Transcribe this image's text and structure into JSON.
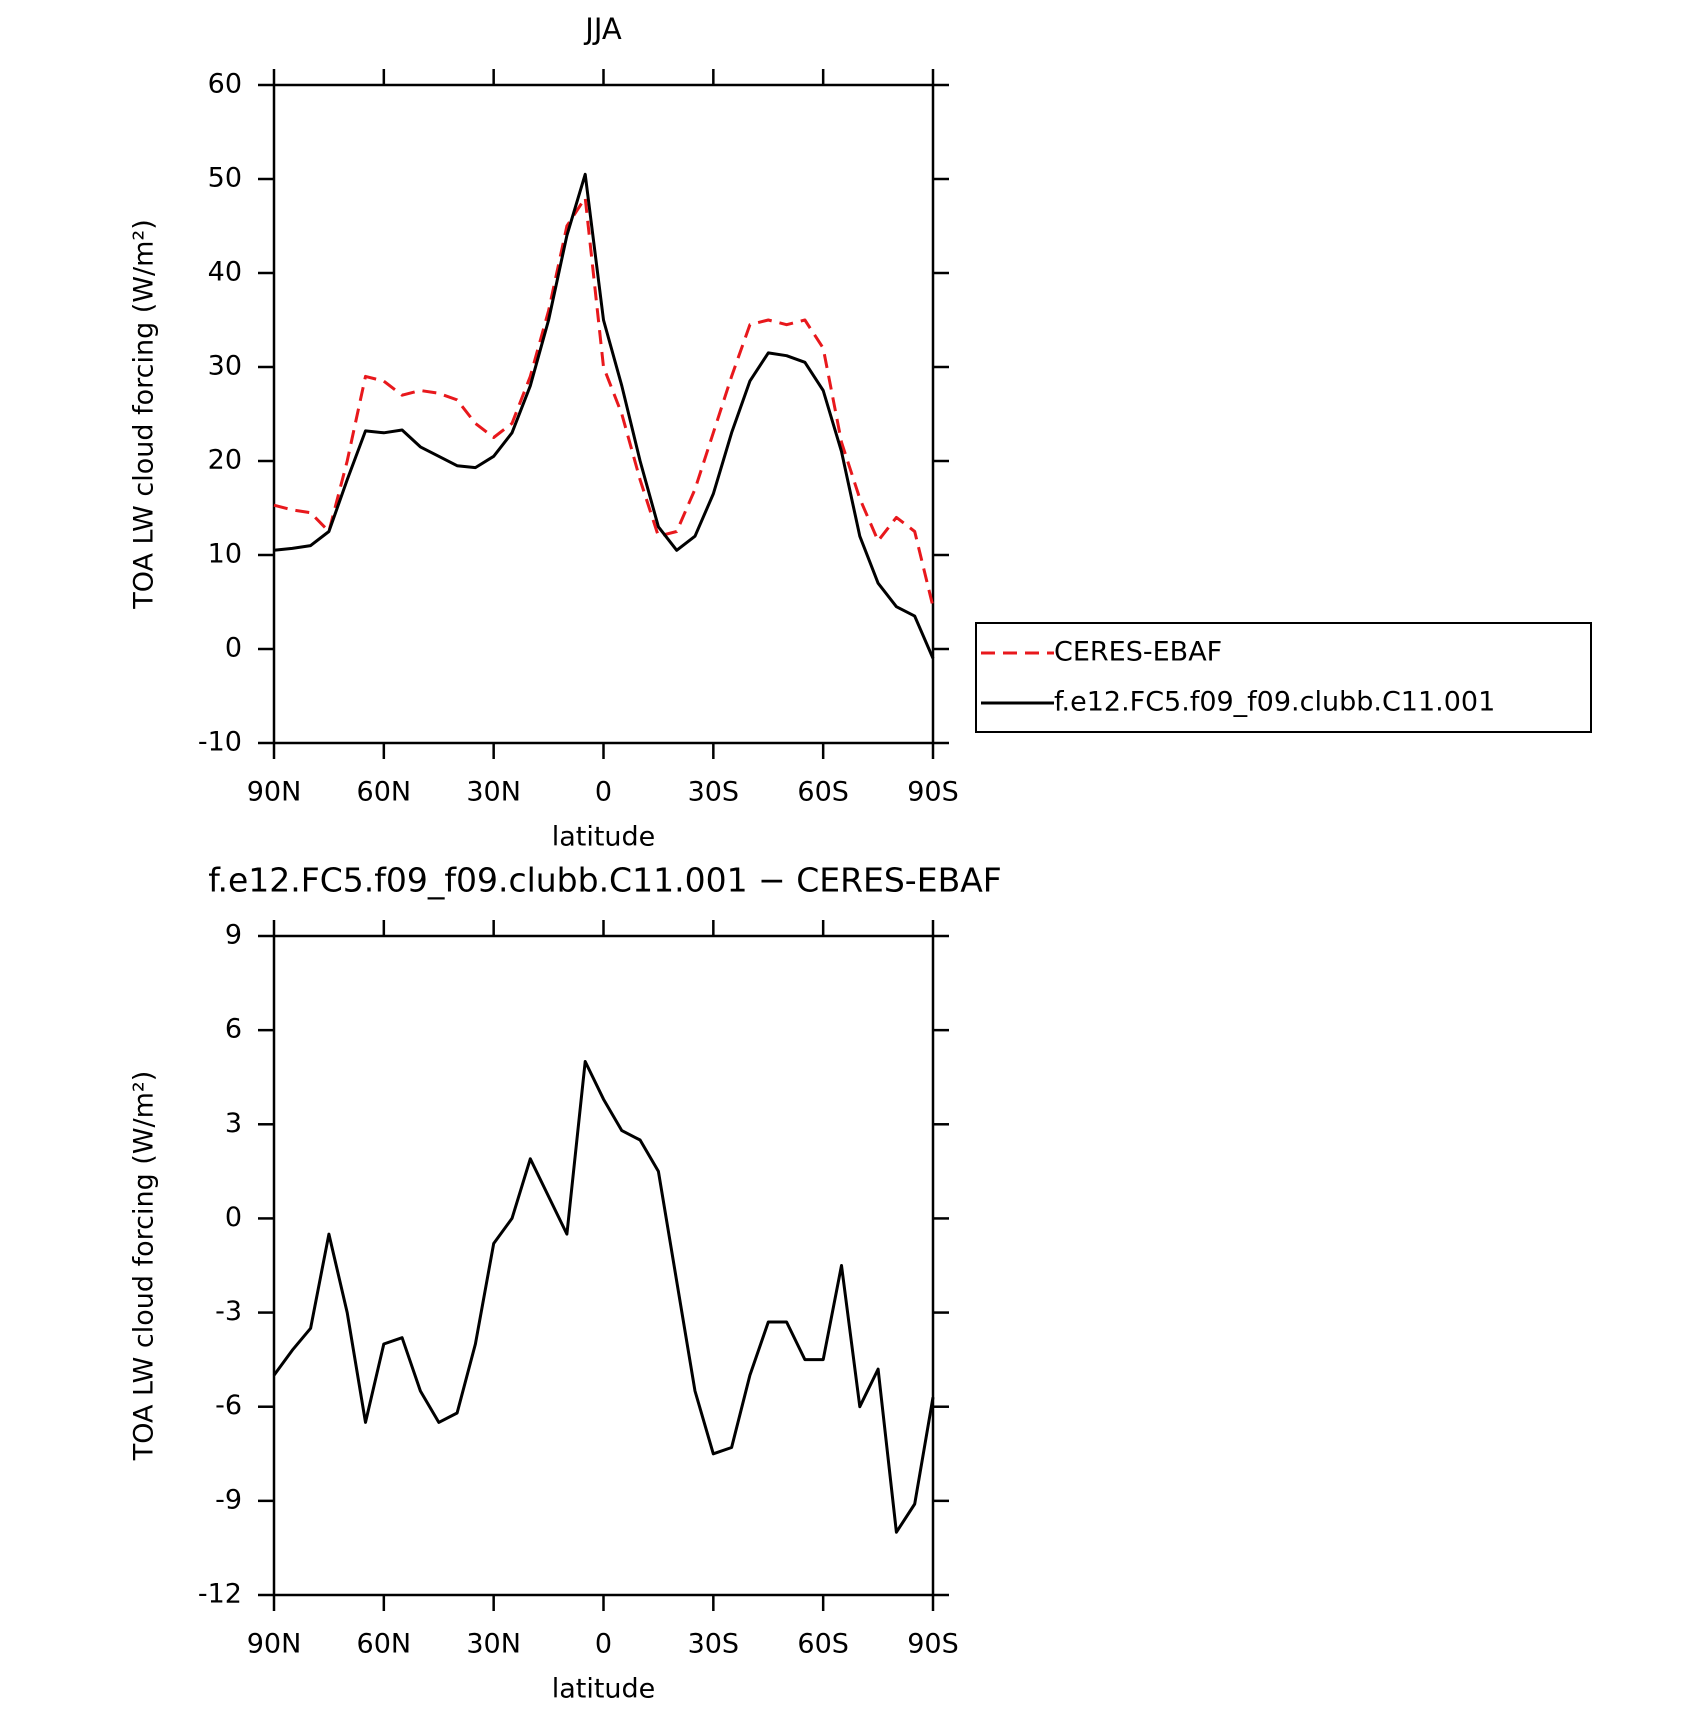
{
  "chart_data": [
    {
      "type": "line",
      "title": "JJA",
      "xlabel": "latitude",
      "ylabel": "TOA LW cloud forcing (W/m²)",
      "x": [
        90,
        85,
        80,
        75,
        70,
        65,
        60,
        55,
        50,
        45,
        40,
        35,
        30,
        25,
        20,
        15,
        10,
        5,
        0,
        -5,
        -10,
        -15,
        -20,
        -25,
        -30,
        -35,
        -40,
        -45,
        -50,
        -55,
        -60,
        -65,
        -70,
        -75,
        -80,
        -85,
        -90
      ],
      "xlim": [
        90,
        -90
      ],
      "xticks": [
        {
          "value": 90,
          "label": "90N"
        },
        {
          "value": 60,
          "label": "60N"
        },
        {
          "value": 30,
          "label": "30N"
        },
        0,
        {
          "value": -30,
          "label": "30S"
        },
        {
          "value": -60,
          "label": "60S"
        },
        {
          "value": -90,
          "label": "90S"
        }
      ],
      "ylim": [
        -10,
        60
      ],
      "yticks": [
        -10,
        0,
        10,
        20,
        30,
        40,
        50,
        60
      ],
      "legend": "right",
      "series": [
        {
          "name": "CERES-EBAF",
          "color": "#e8181c",
          "dash": true,
          "values": [
            15.3,
            14.8,
            14.5,
            12.5,
            20,
            29,
            28.5,
            27,
            27.5,
            27.2,
            26.5,
            24,
            22.5,
            24,
            29,
            36,
            45,
            48,
            30,
            25,
            18,
            12,
            12.5,
            17,
            23,
            29,
            34.5,
            35,
            34.5,
            35,
            32,
            22,
            16,
            11.5,
            14,
            12.5,
            4.5
          ]
        },
        {
          "name": "f.e12.FC5.f09_f09.clubb.C11.001",
          "color": "#000000",
          "dash": false,
          "values": [
            10.5,
            10.7,
            11,
            12.5,
            18,
            23.2,
            23,
            23.3,
            21.5,
            20.5,
            19.5,
            19.3,
            20.5,
            23,
            28,
            35,
            44,
            50.5,
            35,
            28,
            20,
            13,
            10.5,
            12,
            16.5,
            23,
            28.5,
            31.5,
            31.2,
            30.5,
            27.5,
            21,
            12,
            7,
            4.5,
            3.5,
            -1
          ]
        }
      ]
    },
    {
      "type": "line",
      "title": "f.e12.FC5.f09_f09.clubb.C11.001 − CERES-EBAF",
      "xlabel": "latitude",
      "ylabel": "TOA LW cloud forcing (W/m²)",
      "x": [
        90,
        85,
        80,
        75,
        70,
        65,
        60,
        55,
        50,
        45,
        40,
        35,
        30,
        25,
        20,
        15,
        10,
        5,
        0,
        -5,
        -10,
        -15,
        -20,
        -25,
        -30,
        -35,
        -40,
        -45,
        -50,
        -55,
        -60,
        -65,
        -70,
        -75,
        -80,
        -85,
        -90
      ],
      "xlim": [
        90,
        -90
      ],
      "xticks": [
        {
          "value": 90,
          "label": "90N"
        },
        {
          "value": 60,
          "label": "60N"
        },
        {
          "value": 30,
          "label": "30N"
        },
        0,
        {
          "value": -30,
          "label": "30S"
        },
        {
          "value": -60,
          "label": "60S"
        },
        {
          "value": -90,
          "label": "90S"
        }
      ],
      "ylim": [
        -12,
        9
      ],
      "yticks": [
        -12,
        -9,
        -6,
        -3,
        0,
        3,
        6,
        9
      ],
      "series": [
        {
          "color": "#000000",
          "dash": false,
          "values": [
            -5,
            -4.2,
            -3.5,
            -0.5,
            -3,
            -6.5,
            -4,
            -3.8,
            -5.5,
            -6.5,
            -6.2,
            -4,
            -0.8,
            0,
            1.9,
            0.7,
            -0.5,
            5,
            3.8,
            2.8,
            2.5,
            1.5,
            -2,
            -5.5,
            -7.5,
            -7.3,
            -5,
            -3.3,
            -3.3,
            -4.5,
            -4.5,
            -1.5,
            -6,
            -4.8,
            -10,
            -9.1,
            -5.7
          ]
        }
      ]
    }
  ]
}
